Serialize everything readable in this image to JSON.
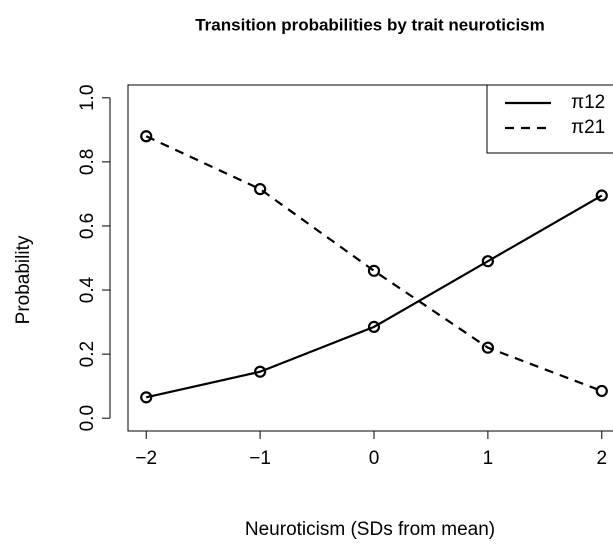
{
  "chart_data": {
    "type": "line",
    "title": "Transition probabilities by trait neuroticism",
    "x_label": "Neuroticism (SDs from mean)",
    "y_label": "Probability",
    "x": [
      -2,
      -1,
      0,
      1,
      2
    ],
    "series": [
      {
        "name": "π12",
        "color": "#000000",
        "dash": "solid",
        "values": [
          0.065,
          0.145,
          0.285,
          0.49,
          0.695
        ]
      },
      {
        "name": "π21",
        "color": "#000000",
        "dash": "dashed",
        "values": [
          0.88,
          0.715,
          0.46,
          0.22,
          0.085
        ]
      }
    ],
    "xlim": [
      -2.16,
      2.16
    ],
    "ylim": [
      -0.04,
      1.04
    ],
    "xticks": [
      {
        "value": -2,
        "label": "−2"
      },
      {
        "value": -1,
        "label": "−1"
      },
      0,
      1,
      2
    ],
    "yticks": [
      {
        "value": 0,
        "label": "0.0"
      },
      {
        "value": 0.2,
        "label": "0.2"
      },
      {
        "value": 0.4,
        "label": "0.4"
      },
      {
        "value": 0.6,
        "label": "0.6"
      },
      {
        "value": 0.8,
        "label": "0.8"
      },
      {
        "value": 1,
        "label": "1.0"
      }
    ],
    "legend": "top-right",
    "grid": false
  }
}
